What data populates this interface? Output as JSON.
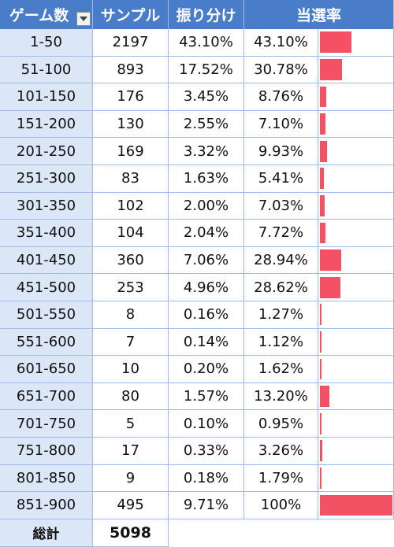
{
  "table": {
    "headers": [
      "ゲーム数",
      "サンプル",
      "振り分け",
      "当選率"
    ],
    "bar_color": "#f45165",
    "rows": [
      {
        "range": "1-50",
        "samples": "2197",
        "share": "43.10%",
        "rate": "43.10%",
        "bar_fraction": 0.431
      },
      {
        "range": "51-100",
        "samples": "893",
        "share": "17.52%",
        "rate": "30.78%",
        "bar_fraction": 0.3078
      },
      {
        "range": "101-150",
        "samples": "176",
        "share": "3.45%",
        "rate": "8.76%",
        "bar_fraction": 0.0876
      },
      {
        "range": "151-200",
        "samples": "130",
        "share": "2.55%",
        "rate": "7.10%",
        "bar_fraction": 0.071
      },
      {
        "range": "201-250",
        "samples": "169",
        "share": "3.32%",
        "rate": "9.93%",
        "bar_fraction": 0.0993
      },
      {
        "range": "251-300",
        "samples": "83",
        "share": "1.63%",
        "rate": "5.41%",
        "bar_fraction": 0.0541
      },
      {
        "range": "301-350",
        "samples": "102",
        "share": "2.00%",
        "rate": "7.03%",
        "bar_fraction": 0.0703
      },
      {
        "range": "351-400",
        "samples": "104",
        "share": "2.04%",
        "rate": "7.72%",
        "bar_fraction": 0.0772
      },
      {
        "range": "401-450",
        "samples": "360",
        "share": "7.06%",
        "rate": "28.94%",
        "bar_fraction": 0.2894
      },
      {
        "range": "451-500",
        "samples": "253",
        "share": "4.96%",
        "rate": "28.62%",
        "bar_fraction": 0.2862
      },
      {
        "range": "501-550",
        "samples": "8",
        "share": "0.16%",
        "rate": "1.27%",
        "bar_fraction": 0.0127
      },
      {
        "range": "551-600",
        "samples": "7",
        "share": "0.14%",
        "rate": "1.12%",
        "bar_fraction": 0.0112
      },
      {
        "range": "601-650",
        "samples": "10",
        "share": "0.20%",
        "rate": "1.62%",
        "bar_fraction": 0.0162
      },
      {
        "range": "651-700",
        "samples": "80",
        "share": "1.57%",
        "rate": "13.20%",
        "bar_fraction": 0.132
      },
      {
        "range": "701-750",
        "samples": "5",
        "share": "0.10%",
        "rate": "0.95%",
        "bar_fraction": 0.0095
      },
      {
        "range": "751-800",
        "samples": "17",
        "share": "0.33%",
        "rate": "3.26%",
        "bar_fraction": 0.0326
      },
      {
        "range": "801-850",
        "samples": "9",
        "share": "0.18%",
        "rate": "1.79%",
        "bar_fraction": 0.0179
      },
      {
        "range": "851-900",
        "samples": "495",
        "share": "9.71%",
        "rate": "100%",
        "bar_fraction": 1.0
      }
    ],
    "total": {
      "label": "総計",
      "value": "5098"
    }
  }
}
